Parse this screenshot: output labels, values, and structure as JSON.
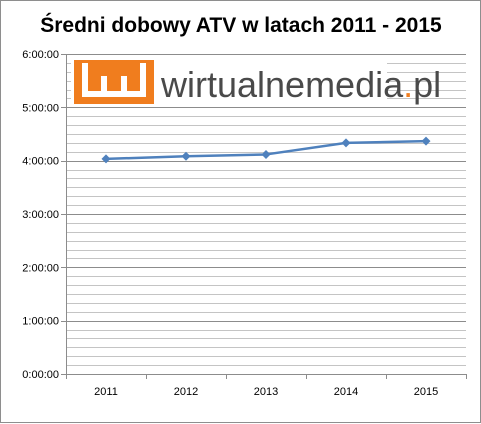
{
  "chart_data": {
    "type": "line",
    "title": "Średni dobowy ATV w latach 2011 - 2015",
    "xlabel": "",
    "ylabel": "",
    "categories": [
      "2011",
      "2012",
      "2013",
      "2014",
      "2015"
    ],
    "series": [
      {
        "values_seconds": [
          14520,
          14700,
          14820,
          15600,
          15720
        ],
        "values_label": [
          "4:02:00",
          "4:05:00",
          "4:07:00",
          "4:20:00",
          "4:22:00"
        ]
      }
    ],
    "y_unit": "h:mm:ss",
    "ylim_seconds": [
      0,
      21600
    ],
    "y_ticks": [
      "0:00:00",
      "1:00:00",
      "2:00:00",
      "3:00:00",
      "4:00:00",
      "5:00:00",
      "6:00:00"
    ],
    "y_minor_grid_step_seconds": 600,
    "grid": true,
    "legend": "none",
    "line_color": "#4f81bd",
    "marker": "diamond"
  },
  "watermark": {
    "brand_text_main": "wirtualnemedia",
    "brand_text_dot": ".",
    "brand_text_tld": "pl",
    "brand_color": "#f07d1e"
  }
}
